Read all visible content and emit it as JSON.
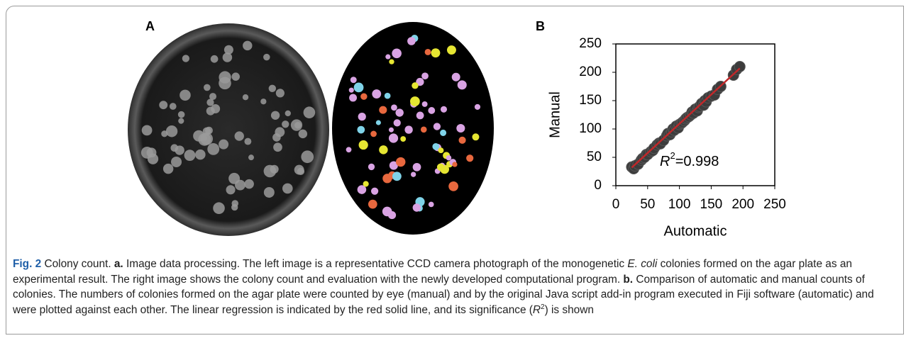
{
  "panel_a": {
    "label": "A"
  },
  "chart_data": {
    "type": "scatter",
    "panel_label": "B",
    "xlabel": "Automatic",
    "ylabel": "Manual",
    "x": [
      25,
      28,
      30,
      35,
      40,
      42,
      45,
      48,
      50,
      55,
      58,
      60,
      65,
      68,
      70,
      75,
      80,
      82,
      85,
      88,
      90,
      92,
      95,
      98,
      100,
      103,
      105,
      108,
      110,
      112,
      115,
      118,
      120,
      122,
      125,
      128,
      130,
      132,
      135,
      138,
      140,
      142,
      145,
      150,
      155,
      160,
      165,
      185,
      190,
      195
    ],
    "y": [
      33,
      30,
      35,
      38,
      45,
      48,
      50,
      55,
      55,
      60,
      62,
      66,
      72,
      75,
      74,
      80,
      88,
      92,
      90,
      95,
      100,
      98,
      105,
      102,
      108,
      110,
      112,
      115,
      118,
      120,
      122,
      125,
      130,
      128,
      135,
      132,
      138,
      140,
      145,
      142,
      150,
      148,
      155,
      158,
      160,
      170,
      175,
      195,
      205,
      210
    ],
    "color": "#3c3c3c",
    "trendline": {
      "x": [
        25,
        195
      ],
      "y": [
        32,
        207
      ],
      "color": "#c0282a"
    },
    "xlim": [
      0,
      250
    ],
    "ylim": [
      0,
      250
    ],
    "xticks": [
      0,
      50,
      100,
      150,
      200,
      250
    ],
    "yticks": [
      0,
      50,
      100,
      150,
      200,
      250
    ],
    "annotation": {
      "symbol": "R",
      "exponent": "2",
      "text": "=0.998"
    }
  },
  "caption": {
    "runs": [
      {
        "text": "Fig. 2",
        "style": "label"
      },
      {
        "text": " Colony count. ",
        "style": "normal"
      },
      {
        "text": "a.",
        "style": "bold"
      },
      {
        "text": " Image data processing. The left image is a representative CCD camera photograph of the monogenetic ",
        "style": "normal"
      },
      {
        "text": "E. coli",
        "style": "italic"
      },
      {
        "text": " colonies formed on the agar plate as an experimental result. The right image shows the colony count and evaluation with the newly developed computational program. ",
        "style": "normal"
      },
      {
        "text": "b.",
        "style": "bold"
      },
      {
        "text": " Comparison of automatic and manual counts of colonies. The numbers of colonies formed on the agar plate were counted by eye (manual) and by the original Java script add-in program executed in Fiji software (automatic) and were plotted against each other. The linear regression is indicated by the red solid line, and its significance (",
        "style": "normal"
      },
      {
        "text": "R",
        "style": "italic"
      },
      {
        "text": "2",
        "style": "superscript"
      },
      {
        "text": ") is shown",
        "style": "normal"
      }
    ]
  }
}
